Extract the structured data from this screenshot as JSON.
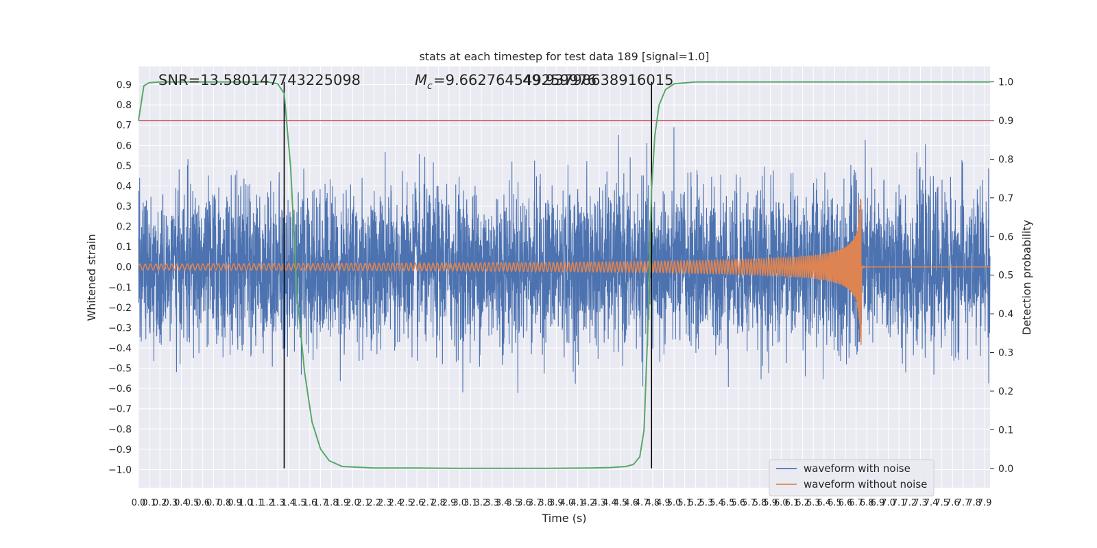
{
  "chart_data": {
    "type": "line",
    "title": "stats at each timestep for test data 189 [signal=1.0]",
    "xlabel": "Time (s)",
    "ylabel": "Whitened strain",
    "ylabel_right": "Detection probability",
    "xlim": [
      0.0,
      7.95
    ],
    "ylim": [
      -1.09,
      0.99
    ],
    "ylim_right": [
      -0.05,
      1.04
    ],
    "x_ticks": [
      "0.0",
      "0.1",
      "0.2",
      "0.3",
      "0.4",
      "0.5",
      "0.6",
      "0.7",
      "0.8",
      "0.9",
      "1.0",
      "1.1",
      "1.2",
      "1.3",
      "1.4",
      "1.5",
      "1.6",
      "1.7",
      "1.8",
      "1.9",
      "2.0",
      "2.1",
      "2.2",
      "2.3",
      "2.4",
      "2.5",
      "2.6",
      "2.7",
      "2.8",
      "2.9",
      "3.0",
      "3.1",
      "3.2",
      "3.3",
      "3.4",
      "3.5",
      "3.6",
      "3.7",
      "3.8",
      "3.9",
      "4.0",
      "4.1",
      "4.2",
      "4.3",
      "4.4",
      "4.5",
      "4.6",
      "4.7",
      "4.8",
      "4.9",
      "5.0",
      "5.1",
      "5.2",
      "5.3",
      "5.4",
      "5.5",
      "5.6",
      "5.7",
      "5.8",
      "5.9",
      "6.0",
      "6.1",
      "6.2",
      "6.3",
      "6.4",
      "6.5",
      "6.6",
      "6.7",
      "6.8",
      "6.9",
      "7.0",
      "7.1",
      "7.2",
      "7.3",
      "7.4",
      "7.5",
      "7.6",
      "7.7",
      "7.8",
      "7.9"
    ],
    "y_ticks": [
      "0.9",
      "0.8",
      "0.7",
      "0.6",
      "0.5",
      "0.4",
      "0.3",
      "0.2",
      "0.1",
      "0.0",
      "−0.1",
      "−0.2",
      "−0.3",
      "−0.4",
      "−0.5",
      "−0.6",
      "−0.7",
      "−0.8",
      "−0.9",
      "−1.0"
    ],
    "y_ticks_right": [
      "1.0",
      "0.9",
      "0.8",
      "0.7",
      "0.6",
      "0.5",
      "0.4",
      "0.3",
      "0.2",
      "0.1",
      "0.0"
    ],
    "annotations": {
      "snr": "SNR=13.580147743225098",
      "mc_a": "=9.662764549259976",
      "mc_b": "49.93798638916015",
      "mc_symbol": "M",
      "mc_subscript": "c"
    },
    "vertical_lines": [
      1.36,
      4.79
    ],
    "threshold_probability": 0.9,
    "detection_probability": {
      "x": [
        0.0,
        0.05,
        0.1,
        0.2,
        0.4,
        0.8,
        1.0,
        1.2,
        1.3,
        1.36,
        1.42,
        1.48,
        1.55,
        1.62,
        1.7,
        1.78,
        1.9,
        2.2,
        2.6,
        3.0,
        3.4,
        3.8,
        4.2,
        4.4,
        4.55,
        4.62,
        4.68,
        4.72,
        4.76,
        4.79,
        4.82,
        4.86,
        4.92,
        5.0,
        5.2,
        5.5,
        6.0,
        7.95
      ],
      "y": [
        0.9,
        0.99,
        0.998,
        1.0,
        1.0,
        1.0,
        1.0,
        1.0,
        0.995,
        0.97,
        0.78,
        0.45,
        0.25,
        0.12,
        0.05,
        0.02,
        0.005,
        0.001,
        0.001,
        0.0,
        0.0,
        0.0,
        0.001,
        0.002,
        0.005,
        0.01,
        0.03,
        0.1,
        0.4,
        0.72,
        0.86,
        0.94,
        0.98,
        0.995,
        1.0,
        1.0,
        1.0,
        1.0
      ]
    },
    "series": [
      {
        "name": "waveform with noise",
        "color": "#4c72b0",
        "noise_std": 0.19
      },
      {
        "name": "waveform without noise",
        "color": "#dd8452",
        "chirp": {
          "t_start": 0.0,
          "t_merge": 6.75,
          "f_start": 20,
          "f_end": 300,
          "amp_start": 0.015,
          "amp_peak": 0.39
        }
      }
    ],
    "colors": {
      "noise": "#4c72b0",
      "clean": "#dd8452",
      "probability": "#55a868",
      "threshold": "#c44e52",
      "vline": "#000000",
      "plot_bg": "#eaeaf2",
      "grid": "#ffffff"
    },
    "legend": {
      "position": "lower right",
      "items": [
        "waveform with noise",
        "waveform without noise"
      ]
    },
    "grid": true
  }
}
